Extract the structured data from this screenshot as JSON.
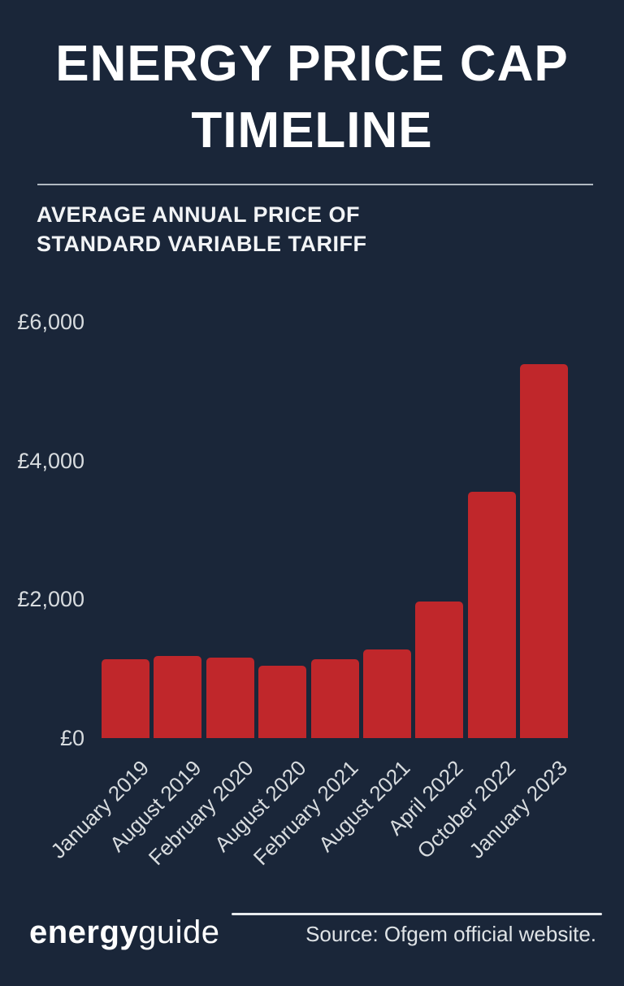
{
  "page": {
    "title_line1": "ENERGY PRICE CAP",
    "title_line2": "TIMELINE",
    "subtitle_line1": "AVERAGE ANNUAL PRICE OF",
    "subtitle_line2": "STANDARD VARIABLE TARIFF"
  },
  "colors": {
    "background": "#1a2639",
    "bar": "#c0272b",
    "text_primary": "#ffffff",
    "text_axis": "#d8dcdf",
    "divider": "#ccd3d9"
  },
  "chart_data": {
    "type": "bar",
    "title": "ENERGY PRICE CAP TIMELINE",
    "subtitle": "AVERAGE ANNUAL PRICE OF STANDARD VARIABLE TARIFF",
    "categories": [
      "January 2019",
      "August 2019",
      "February 2020",
      "August 2020",
      "February 2021",
      "August 2021",
      "April 2022",
      "October 2022",
      "January 2023"
    ],
    "values": [
      1137,
      1179,
      1162,
      1042,
      1138,
      1277,
      1971,
      3549,
      5387
    ],
    "unit": "£",
    "xlabel": "",
    "ylabel": "",
    "ylim": [
      0,
      6000
    ],
    "y_ticks": [
      {
        "value": 0,
        "label": "£0"
      },
      {
        "value": 2000,
        "label": "£2,000"
      },
      {
        "value": 4000,
        "label": "£4,000"
      },
      {
        "value": 6000,
        "label": "£6,000"
      }
    ],
    "grid": false,
    "legend": false,
    "bar_color": "#c0272b"
  },
  "footer": {
    "logo_bold": "energy",
    "logo_light": "guide",
    "source": "Source: Ofgem official website."
  }
}
